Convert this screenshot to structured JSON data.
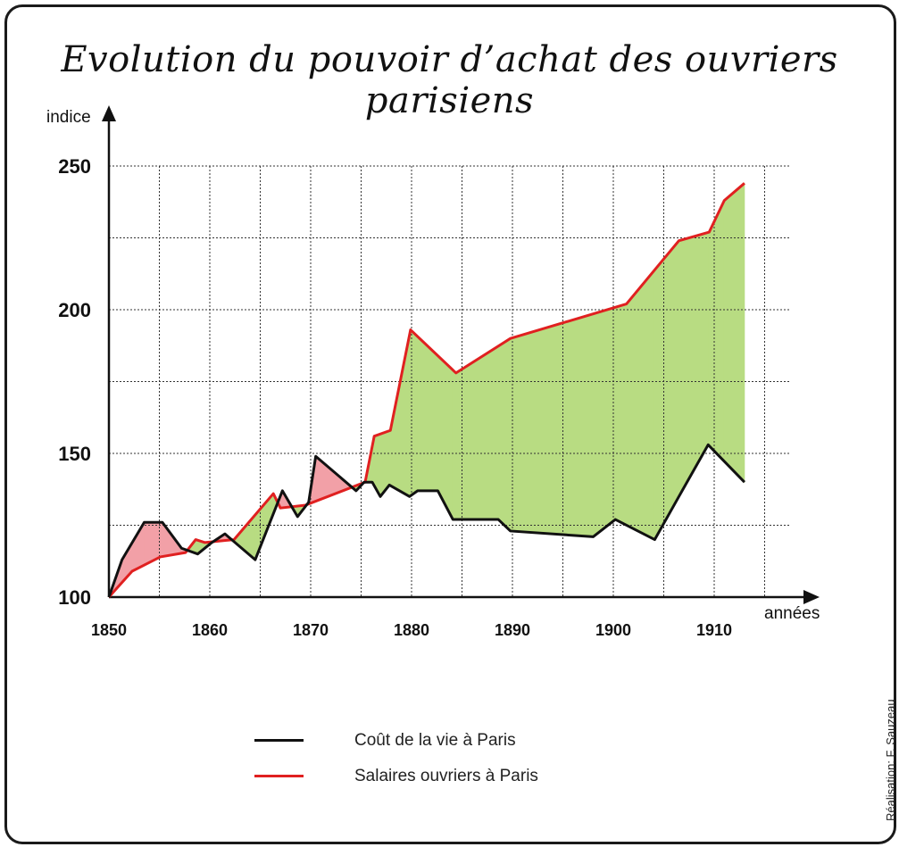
{
  "chart_data": {
    "type": "line",
    "title": "Evolution du pouvoir d’achat des ouvriers parisiens",
    "xlabel": "années",
    "ylabel": "indice",
    "xlim": [
      1850,
      1919
    ],
    "ylim": [
      100,
      250
    ],
    "x_ticks": [
      "1850",
      "1860",
      "1870",
      "1880",
      "1890",
      "1900",
      "1910"
    ],
    "y_ticks": [
      "100",
      "150",
      "200",
      "250"
    ],
    "grid": true,
    "fill_between": {
      "wages_above_color": "#b8dc82",
      "cost_above_color": "#f2a0a7"
    },
    "series": [
      {
        "name": "Coût de la vie à Paris",
        "color": "#111111",
        "x": [
          1850,
          1851.3,
          1853.5,
          1855.3,
          1857.2,
          1858.8,
          1860.2,
          1861.5,
          1864.5,
          1867.2,
          1868.7,
          1869.8,
          1870.5,
          1874.5,
          1875.3,
          1876.1,
          1876.9,
          1877.8,
          1879.8,
          1880.6,
          1882.6,
          1884.1,
          1888.6,
          1889.8,
          1898,
          1900.2,
          1904.1,
          1906.5,
          1909.4,
          1913
        ],
        "y": [
          100,
          113,
          126,
          126,
          117,
          115,
          119,
          122,
          113,
          137,
          128,
          133,
          149,
          137,
          140,
          140,
          135,
          139,
          135,
          137,
          137,
          127,
          127,
          123,
          121,
          127,
          120,
          135,
          153,
          140
        ]
      },
      {
        "name": "Salaires ouvriers à Paris",
        "color": "#e02020",
        "x": [
          1850,
          1852.3,
          1855.1,
          1857.6,
          1858.6,
          1859.5,
          1862.4,
          1866.3,
          1867,
          1869.5,
          1875.4,
          1876.3,
          1877.9,
          1879.9,
          1884.4,
          1889.8,
          1901.3,
          1906.5,
          1909.5,
          1911,
          1913
        ],
        "y": [
          100,
          109,
          114,
          115.5,
          120,
          119,
          120,
          136,
          131,
          132,
          140,
          156,
          158,
          193,
          178,
          190,
          202,
          224,
          227,
          238,
          244
        ]
      }
    ]
  },
  "credit": "Réalisation: F. Sauzeau"
}
